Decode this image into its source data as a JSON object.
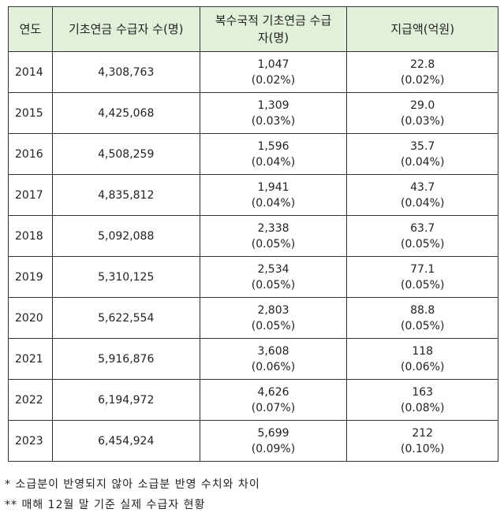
{
  "table": {
    "header": [
      "연도",
      "기초연금 수급자 수(명)",
      "복수국적 기초연금 수급자(명)",
      "지급액(억원)"
    ],
    "rows": [
      [
        "2014",
        "4,308,763",
        "1,047",
        "(0.02%)",
        "22.8",
        "(0.02%)"
      ],
      [
        "2015",
        "4,425,068",
        "1,309",
        "(0.03%)",
        "29.0",
        "(0.03%)"
      ],
      [
        "2016",
        "4,508,259",
        "1,596",
        "(0.04%)",
        "35.7",
        "(0.04%)"
      ],
      [
        "2017",
        "4,835,812",
        "1,941",
        "(0.04%)",
        "43.7",
        "(0.04%)"
      ],
      [
        "2018",
        "5,092,088",
        "2,338",
        "(0.05%)",
        "63.7",
        "(0.05%)"
      ],
      [
        "2019",
        "5,310,125",
        "2,534",
        "(0.05%)",
        "77.1",
        "(0.05%)"
      ],
      [
        "2020",
        "5,622,554",
        "2,803",
        "(0.05%)",
        "88.8",
        "(0.05%)"
      ],
      [
        "2021",
        "5,916,876",
        "3,608",
        "(0.06%)",
        "118",
        "(0.06%)"
      ],
      [
        "2022",
        "6,194,972",
        "4,626",
        "(0.07%)",
        "163",
        "(0.08%)"
      ],
      [
        "2023",
        "6,454,924",
        "5,699",
        "(0.09%)",
        "212",
        "(0.10%)"
      ]
    ]
  },
  "notes": [
    "* 소급분이 반영되지 않아 소급분 반영 수치와 차이",
    "** 매해 12월 말 기준 실제 수급자 현황"
  ]
}
